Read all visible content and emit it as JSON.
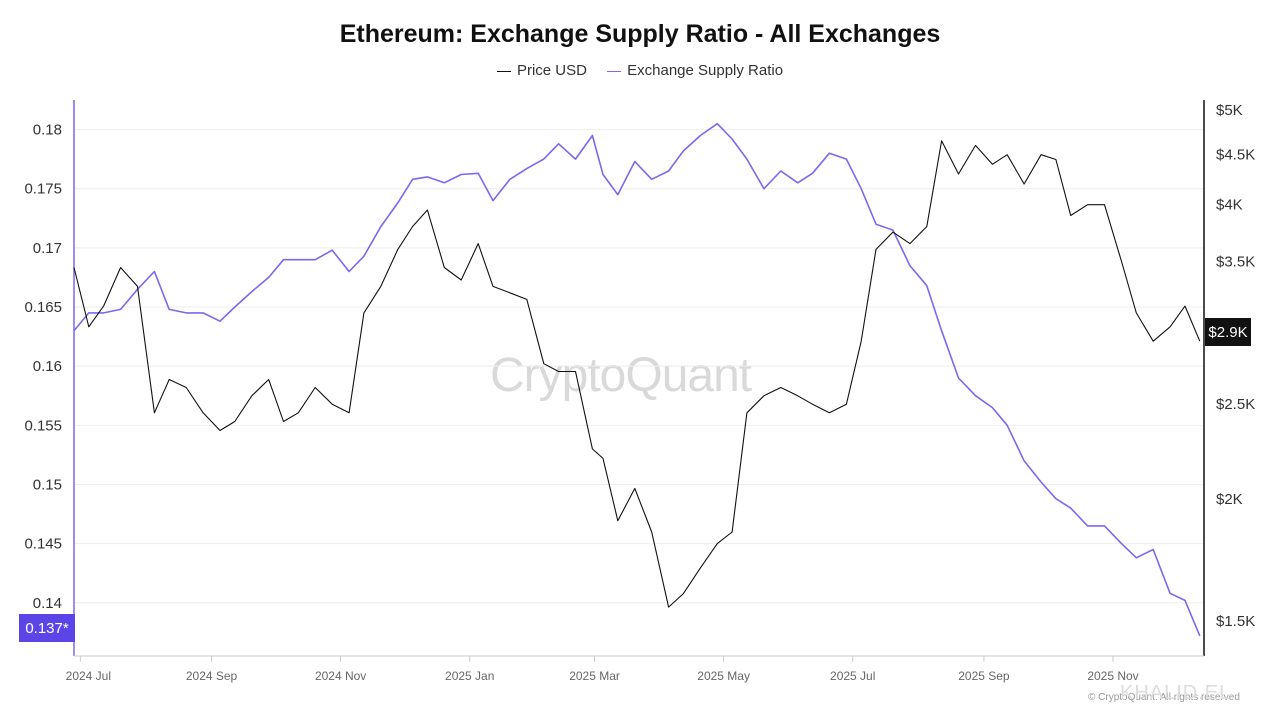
{
  "chart_data": {
    "type": "line",
    "title": "Ethereum: Exchange Supply Ratio - All Exchanges",
    "legend": {
      "placement": "top-center",
      "entries": [
        "Price USD",
        "Exchange Supply Ratio"
      ]
    },
    "x_ticks": [
      "2024 Jul",
      "2024 Sep",
      "2024 Nov",
      "2025 Jan",
      "2025 Mar",
      "2025 May",
      "2025 Jul",
      "2025 Sep",
      "2025 Nov"
    ],
    "left_axis": {
      "ticks": [
        "0.14",
        "0.145",
        "0.15",
        "0.155",
        "0.16",
        "0.165",
        "0.17",
        "0.175",
        "0.18"
      ],
      "range": [
        0.1355,
        0.1825
      ]
    },
    "right_axis": {
      "ticks": [
        "$1.5K",
        "$2K",
        "$2.5K",
        "$3K",
        "$3.5K",
        "$4K",
        "$4.5K",
        "$5K"
      ],
      "log_scale": true
    },
    "current_ratio_label": "0.137*",
    "current_price_label": "$2.9K",
    "grid": "horizontal",
    "colors": {
      "price": "#111111",
      "ratio": "#7b68ee",
      "ratio_badge": "#5b45e6",
      "price_badge": "#111111"
    },
    "series": [
      {
        "name": "Exchange Supply Ratio",
        "axis": "left",
        "x": [
          "2024-06-28",
          "2024-07-05",
          "2024-07-12",
          "2024-07-20",
          "2024-07-28",
          "2024-08-05",
          "2024-08-12",
          "2024-08-20",
          "2024-08-28",
          "2024-09-05",
          "2024-09-12",
          "2024-09-20",
          "2024-09-28",
          "2024-10-05",
          "2024-10-12",
          "2024-10-20",
          "2024-10-28",
          "2024-11-05",
          "2024-11-12",
          "2024-11-20",
          "2024-11-28",
          "2024-12-05",
          "2024-12-12",
          "2024-12-20",
          "2024-12-28",
          "2025-01-05",
          "2025-01-12",
          "2025-01-20",
          "2025-01-28",
          "2025-02-05",
          "2025-02-12",
          "2025-02-20",
          "2025-02-28",
          "2025-03-05",
          "2025-03-12",
          "2025-03-20",
          "2025-03-28",
          "2025-04-05",
          "2025-04-12",
          "2025-04-20",
          "2025-04-28",
          "2025-05-05",
          "2025-05-12",
          "2025-05-20",
          "2025-05-28",
          "2025-06-05",
          "2025-06-12",
          "2025-06-20",
          "2025-06-28",
          "2025-07-05",
          "2025-07-12",
          "2025-07-20",
          "2025-07-28",
          "2025-08-05",
          "2025-08-12",
          "2025-08-20",
          "2025-08-28",
          "2025-09-05",
          "2025-09-12",
          "2025-09-20",
          "2025-09-28",
          "2025-10-05",
          "2025-10-12",
          "2025-10-20",
          "2025-10-28",
          "2025-11-05",
          "2025-11-12",
          "2025-11-20",
          "2025-11-28",
          "2025-12-05",
          "2025-12-12"
        ],
        "values": [
          0.163,
          0.1645,
          0.1645,
          0.1648,
          0.1665,
          0.168,
          0.1648,
          0.1645,
          0.1645,
          0.1638,
          0.165,
          0.1663,
          0.1675,
          0.169,
          0.169,
          0.169,
          0.1698,
          0.168,
          0.1693,
          0.1718,
          0.1738,
          0.1758,
          0.176,
          0.1755,
          0.1762,
          0.1763,
          0.174,
          0.1758,
          0.1767,
          0.1775,
          0.1788,
          0.1775,
          0.1795,
          0.1762,
          0.1745,
          0.1773,
          0.1758,
          0.1765,
          0.1782,
          0.1795,
          0.1805,
          0.1792,
          0.1775,
          0.175,
          0.1765,
          0.1755,
          0.1763,
          0.178,
          0.1775,
          0.175,
          0.172,
          0.1715,
          0.1685,
          0.1668,
          0.163,
          0.159,
          0.1575,
          0.1565,
          0.155,
          0.152,
          0.1502,
          0.1488,
          0.148,
          0.1465,
          0.1465,
          0.145,
          0.1438,
          0.1445,
          0.1408,
          0.1402,
          0.1372
        ]
      },
      {
        "name": "Price USD",
        "axis": "right",
        "x": [
          "2024-06-28",
          "2024-07-05",
          "2024-07-12",
          "2024-07-20",
          "2024-07-28",
          "2024-08-05",
          "2024-08-12",
          "2024-08-20",
          "2024-08-28",
          "2024-09-05",
          "2024-09-12",
          "2024-09-20",
          "2024-09-28",
          "2024-10-05",
          "2024-10-12",
          "2024-10-20",
          "2024-10-28",
          "2024-11-05",
          "2024-11-12",
          "2024-11-20",
          "2024-11-28",
          "2024-12-05",
          "2024-12-12",
          "2024-12-20",
          "2024-12-28",
          "2025-01-05",
          "2025-01-12",
          "2025-01-20",
          "2025-01-28",
          "2025-02-05",
          "2025-02-12",
          "2025-02-20",
          "2025-02-28",
          "2025-03-05",
          "2025-03-12",
          "2025-03-20",
          "2025-03-28",
          "2025-04-05",
          "2025-04-12",
          "2025-04-20",
          "2025-04-28",
          "2025-05-05",
          "2025-05-12",
          "2025-05-20",
          "2025-05-28",
          "2025-06-05",
          "2025-06-12",
          "2025-06-20",
          "2025-06-28",
          "2025-07-05",
          "2025-07-12",
          "2025-07-20",
          "2025-07-28",
          "2025-08-05",
          "2025-08-12",
          "2025-08-20",
          "2025-08-28",
          "2025-09-05",
          "2025-09-12",
          "2025-09-20",
          "2025-09-28",
          "2025-10-05",
          "2025-10-12",
          "2025-10-20",
          "2025-10-28",
          "2025-11-05",
          "2025-11-12",
          "2025-11-20",
          "2025-11-28",
          "2025-12-05",
          "2025-12-12"
        ],
        "values": [
          3450,
          3000,
          3150,
          3450,
          3300,
          2450,
          2650,
          2600,
          2450,
          2350,
          2400,
          2550,
          2650,
          2400,
          2450,
          2600,
          2500,
          2450,
          3100,
          3300,
          3600,
          3800,
          3950,
          3450,
          3350,
          3650,
          3300,
          3250,
          3200,
          2750,
          2700,
          2700,
          2250,
          2200,
          1900,
          2050,
          1850,
          1550,
          1600,
          1700,
          1800,
          1850,
          2450,
          2550,
          2600,
          2550,
          2500,
          2450,
          2500,
          2900,
          3600,
          3750,
          3650,
          3800,
          4650,
          4300,
          4600,
          4400,
          4500,
          4200,
          4500,
          4450,
          3900,
          4000,
          4000,
          3500,
          3100,
          2900,
          3000,
          3150,
          2900
        ]
      }
    ]
  },
  "watermark": "CryptoQuant",
  "footer_credit": "© CryptoQuant. All rights reserved",
  "footer_author": "KHALID.EL"
}
